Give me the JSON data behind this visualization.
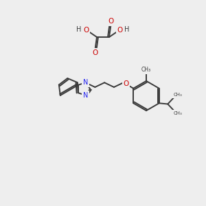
{
  "background_color": "#eeeeee",
  "bond_color": "#3a3a3a",
  "nitrogen_color": "#2020ee",
  "oxygen_color": "#cc0000",
  "figsize": [
    3.0,
    3.0
  ],
  "dpi": 100,
  "xlim": [
    0,
    10
  ],
  "ylim": [
    0,
    10
  ]
}
